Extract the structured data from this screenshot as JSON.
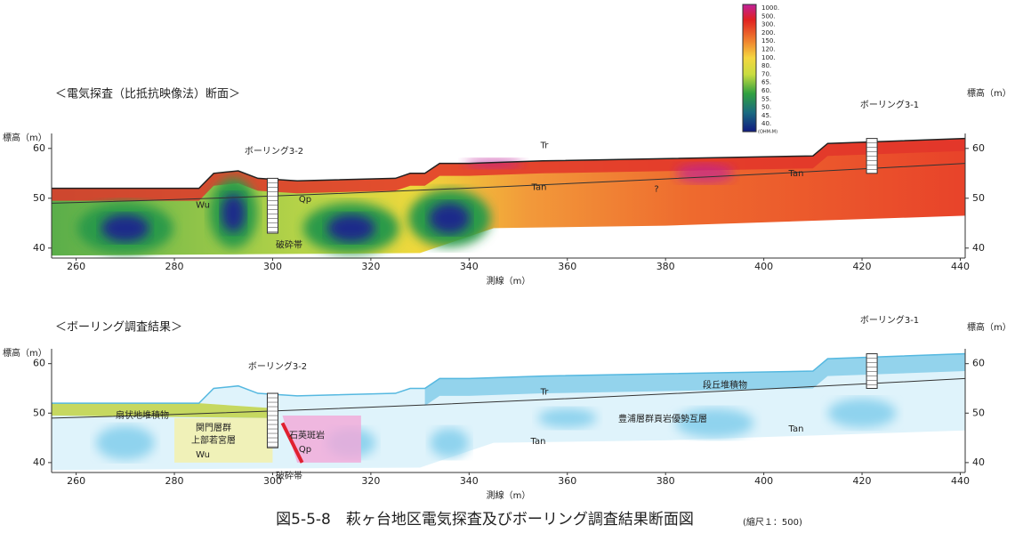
{
  "colorbar": {
    "labels": [
      "1000.",
      "500.",
      "300.",
      "200.",
      "150.",
      "120.",
      "100.",
      "80.",
      "70.",
      "65.",
      "60.",
      "55.",
      "50.",
      "45.",
      "40."
    ],
    "unit": "(OHM-M)"
  },
  "panels": [
    {
      "title": "＜電気探査（比抵抗映像法）断面＞",
      "y_label_left": "標高（m）",
      "y_label_right": "標高（m）",
      "x_label": "測線（m）",
      "xlim": [
        255,
        441
      ],
      "ylim": [
        38,
        63
      ],
      "xticks": [
        260,
        280,
        300,
        320,
        340,
        360,
        380,
        400,
        420,
        440
      ],
      "yticks": [
        40,
        50,
        60
      ],
      "labels": [
        "ボーリング3-1",
        "ボーリング3-2",
        "Wu",
        "Qp",
        "Tan",
        "Tan",
        "Tr",
        "破砕帯",
        "?"
      ]
    },
    {
      "title": "＜ボーリング調査結果＞",
      "y_label_left": "標高（m）",
      "y_label_right": "標高（m）",
      "x_label": "測線（m）",
      "xlim": [
        255,
        441
      ],
      "ylim": [
        38,
        63
      ],
      "xticks": [
        260,
        280,
        300,
        320,
        340,
        360,
        380,
        400,
        420,
        440
      ],
      "yticks": [
        40,
        50,
        60
      ],
      "labels": [
        "ボーリング3-1",
        "ボーリング3-2",
        "扇状地堆積物",
        "関門層群",
        "上部若宮層",
        "石英斑岩",
        "Wu",
        "Qp",
        "Tan",
        "Tan",
        "Tr",
        "段丘堆積物",
        "豊浦層群頁岩優勢互層",
        "破砕帯"
      ]
    }
  ],
  "caption": {
    "title": "図5-5-8　萩ヶ台地区電気探査及びボーリング調査結果断面図",
    "scale": "(縮尺１：500)"
  }
}
